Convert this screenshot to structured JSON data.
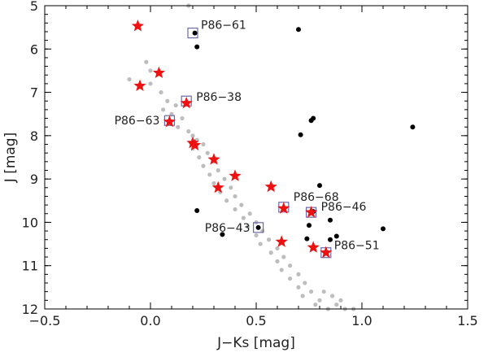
{
  "chart_data": {
    "type": "scatter",
    "title": "",
    "xlabel": "J−Ks [mag]",
    "ylabel": "J [mag]",
    "xlim": [
      -0.5,
      1.5
    ],
    "ylim": [
      12,
      5
    ],
    "y_inverted": true,
    "x_ticks": [
      -0.5,
      0.0,
      0.5,
      1.0,
      1.5
    ],
    "x_tick_labels": [
      "−0.5",
      "0.0",
      "0.5",
      "1.0",
      "1.5"
    ],
    "y_ticks": [
      5,
      6,
      7,
      8,
      9,
      10,
      11,
      12
    ],
    "y_tick_labels": [
      "5",
      "6",
      "7",
      "8",
      "9",
      "10",
      "11",
      "12"
    ],
    "grid": false,
    "colors": {
      "gray": "#bdbdbd",
      "black": "#000000",
      "red": "#ee1111",
      "box": "#6a6aa8"
    },
    "series": [
      {
        "name": "gray field/cluster stars",
        "marker": "gray-dot",
        "approximate": true,
        "points": [
          [
            0.18,
            5.0
          ],
          [
            -0.02,
            6.3
          ],
          [
            0.0,
            6.5
          ],
          [
            -0.1,
            6.7
          ],
          [
            0.0,
            6.8
          ],
          [
            0.05,
            7.0
          ],
          [
            0.08,
            7.2
          ],
          [
            0.12,
            7.3
          ],
          [
            0.06,
            7.4
          ],
          [
            0.1,
            7.5
          ],
          [
            0.15,
            7.6
          ],
          [
            0.13,
            7.8
          ],
          [
            0.18,
            7.9
          ],
          [
            0.2,
            8.0
          ],
          [
            0.22,
            8.1
          ],
          [
            0.25,
            8.2
          ],
          [
            0.2,
            8.3
          ],
          [
            0.27,
            8.4
          ],
          [
            0.23,
            8.5
          ],
          [
            0.3,
            8.6
          ],
          [
            0.25,
            8.7
          ],
          [
            0.32,
            8.8
          ],
          [
            0.28,
            8.9
          ],
          [
            0.35,
            9.0
          ],
          [
            0.3,
            9.1
          ],
          [
            0.38,
            9.2
          ],
          [
            0.33,
            9.3
          ],
          [
            0.4,
            9.4
          ],
          [
            0.36,
            9.5
          ],
          [
            0.43,
            9.6
          ],
          [
            0.4,
            9.7
          ],
          [
            0.47,
            9.8
          ],
          [
            0.44,
            9.9
          ],
          [
            0.5,
            10.0
          ],
          [
            0.46,
            10.1
          ],
          [
            0.53,
            10.2
          ],
          [
            0.5,
            10.3
          ],
          [
            0.56,
            10.4
          ],
          [
            0.52,
            10.5
          ],
          [
            0.6,
            10.6
          ],
          [
            0.57,
            10.7
          ],
          [
            0.63,
            10.8
          ],
          [
            0.6,
            10.9
          ],
          [
            0.66,
            11.0
          ],
          [
            0.62,
            11.1
          ],
          [
            0.7,
            11.2
          ],
          [
            0.66,
            11.3
          ],
          [
            0.73,
            11.4
          ],
          [
            0.7,
            11.5
          ],
          [
            0.76,
            11.6
          ],
          [
            0.72,
            11.7
          ],
          [
            0.8,
            11.8
          ],
          [
            0.78,
            11.9
          ],
          [
            0.84,
            12.0
          ],
          [
            0.88,
            11.9
          ],
          [
            0.92,
            12.0
          ],
          [
            0.96,
            12.0
          ],
          [
            0.9,
            11.8
          ],
          [
            0.86,
            11.7
          ],
          [
            0.82,
            11.6
          ]
        ]
      },
      {
        "name": "black stars",
        "marker": "black-dot",
        "points": [
          [
            0.7,
            5.55
          ],
          [
            0.21,
            5.63
          ],
          [
            0.22,
            5.95
          ],
          [
            0.77,
            7.6
          ],
          [
            0.76,
            7.65
          ],
          [
            0.71,
            7.98
          ],
          [
            1.24,
            7.8
          ],
          [
            0.8,
            9.15
          ],
          [
            0.22,
            9.73
          ],
          [
            0.75,
            10.07
          ],
          [
            0.77,
            9.75
          ],
          [
            0.85,
            9.95
          ],
          [
            1.1,
            10.15
          ],
          [
            0.51,
            10.12
          ],
          [
            0.34,
            10.28
          ],
          [
            0.88,
            10.32
          ],
          [
            0.85,
            10.4
          ],
          [
            0.74,
            10.38
          ]
        ]
      },
      {
        "name": "red stars",
        "marker": "red-star",
        "points": [
          [
            -0.06,
            5.47
          ],
          [
            0.04,
            6.55
          ],
          [
            -0.05,
            6.85
          ],
          [
            0.17,
            7.25
          ],
          [
            0.09,
            7.68
          ],
          [
            0.2,
            8.17
          ],
          [
            0.21,
            8.22
          ],
          [
            0.3,
            8.55
          ],
          [
            0.4,
            8.93
          ],
          [
            0.32,
            9.2
          ],
          [
            0.57,
            9.18
          ],
          [
            0.63,
            9.68
          ],
          [
            0.76,
            9.77
          ],
          [
            0.62,
            10.45
          ],
          [
            0.77,
            10.58
          ],
          [
            0.83,
            10.7
          ]
        ]
      },
      {
        "name": "boxed candidates",
        "marker": "open-square",
        "points": [
          [
            0.2,
            5.63
          ],
          [
            0.17,
            7.2
          ],
          [
            0.09,
            7.65
          ],
          [
            0.63,
            9.65
          ],
          [
            0.76,
            9.77
          ],
          [
            0.51,
            10.12
          ],
          [
            0.83,
            10.7
          ]
        ]
      }
    ],
    "annotations": [
      {
        "text": "P86−61",
        "x": 0.2,
        "y": 5.63
      },
      {
        "text": "P86−38",
        "x": 0.17,
        "y": 7.2
      },
      {
        "text": "P86−63",
        "x": 0.09,
        "y": 7.65
      },
      {
        "text": "P86−68",
        "x": 0.63,
        "y": 9.65
      },
      {
        "text": "P86−46",
        "x": 0.76,
        "y": 9.77
      },
      {
        "text": "P86−43",
        "x": 0.51,
        "y": 10.12
      },
      {
        "text": "P86−51",
        "x": 0.83,
        "y": 10.7
      }
    ]
  }
}
